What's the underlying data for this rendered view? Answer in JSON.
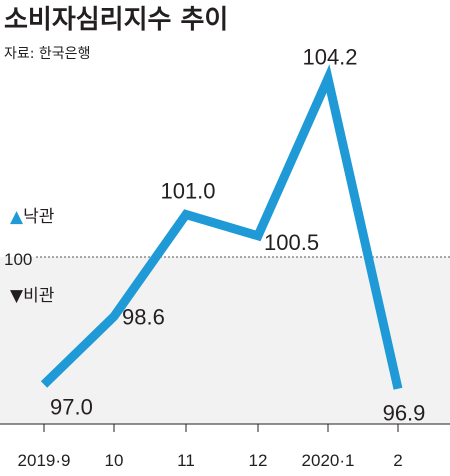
{
  "title": "소비자심리지수 추이",
  "source": "자료: 한국은행",
  "zones": {
    "up_marker": "▲",
    "up_label": "낙관",
    "down_marker": "▼",
    "down_label": "비관"
  },
  "reference_label": "100",
  "colors": {
    "line": "#1f9ad6",
    "shade": "#f3f2f2",
    "text": "#231f20",
    "ref_line": "#555555"
  },
  "chart_data": {
    "type": "line",
    "title": "소비자심리지수 추이",
    "categories": [
      "2019·9",
      "10",
      "11",
      "12",
      "2020·1",
      "2"
    ],
    "values": [
      97.0,
      98.6,
      101.0,
      100.5,
      104.2,
      96.9
    ],
    "value_labels": [
      "97.0",
      "98.6",
      "101.0",
      "100.5",
      "104.2",
      "96.9"
    ],
    "reference_line": 100,
    "ylim": [
      96,
      105
    ],
    "grid": false
  }
}
